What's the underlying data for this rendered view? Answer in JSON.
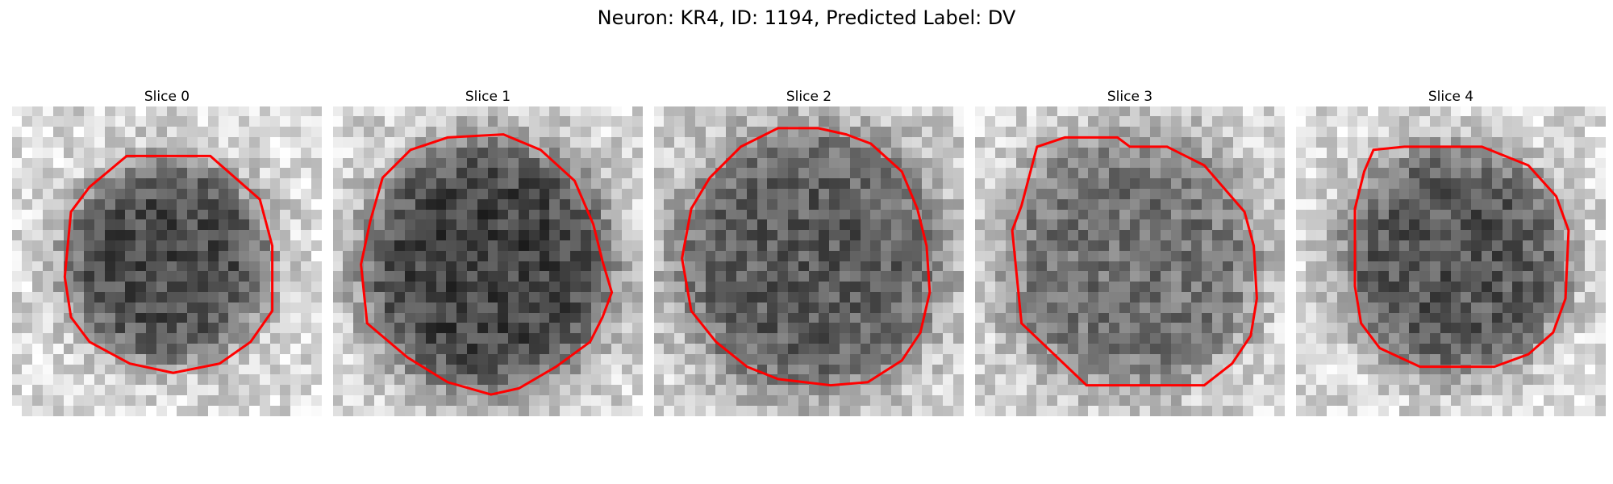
{
  "figure": {
    "title": "Neuron: KR4, ID: 1194, Predicted Label: DV"
  },
  "panels": [
    {
      "title": "Slice 0",
      "center": [
        0.5,
        0.5
      ],
      "radius": 0.33,
      "dark": 0.3,
      "bright": 0.86,
      "contour": [
        [
          0.37,
          0.16
        ],
        [
          0.64,
          0.16
        ],
        [
          0.8,
          0.3
        ],
        [
          0.84,
          0.45
        ],
        [
          0.84,
          0.66
        ],
        [
          0.77,
          0.76
        ],
        [
          0.67,
          0.83
        ],
        [
          0.52,
          0.86
        ],
        [
          0.38,
          0.83
        ],
        [
          0.25,
          0.76
        ],
        [
          0.19,
          0.68
        ],
        [
          0.17,
          0.55
        ],
        [
          0.19,
          0.34
        ],
        [
          0.25,
          0.26
        ]
      ]
    },
    {
      "title": "Slice 1",
      "center": [
        0.5,
        0.52
      ],
      "radius": 0.41,
      "dark": 0.26,
      "bright": 0.85,
      "contour": [
        [
          0.37,
          0.1
        ],
        [
          0.55,
          0.09
        ],
        [
          0.67,
          0.14
        ],
        [
          0.78,
          0.24
        ],
        [
          0.84,
          0.38
        ],
        [
          0.87,
          0.5
        ],
        [
          0.9,
          0.6
        ],
        [
          0.87,
          0.68
        ],
        [
          0.83,
          0.76
        ],
        [
          0.72,
          0.84
        ],
        [
          0.6,
          0.91
        ],
        [
          0.51,
          0.93
        ],
        [
          0.37,
          0.89
        ],
        [
          0.24,
          0.81
        ],
        [
          0.11,
          0.7
        ],
        [
          0.09,
          0.51
        ],
        [
          0.12,
          0.37
        ],
        [
          0.16,
          0.23
        ],
        [
          0.25,
          0.14
        ]
      ]
    },
    {
      "title": "Slice 2",
      "center": [
        0.5,
        0.5
      ],
      "radius": 0.43,
      "dark": 0.36,
      "bright": 0.82,
      "contour": [
        [
          0.4,
          0.07
        ],
        [
          0.53,
          0.07
        ],
        [
          0.62,
          0.09
        ],
        [
          0.7,
          0.12
        ],
        [
          0.8,
          0.21
        ],
        [
          0.85,
          0.33
        ],
        [
          0.88,
          0.45
        ],
        [
          0.89,
          0.6
        ],
        [
          0.86,
          0.73
        ],
        [
          0.8,
          0.82
        ],
        [
          0.69,
          0.89
        ],
        [
          0.57,
          0.9
        ],
        [
          0.4,
          0.88
        ],
        [
          0.3,
          0.84
        ],
        [
          0.2,
          0.76
        ],
        [
          0.12,
          0.66
        ],
        [
          0.09,
          0.49
        ],
        [
          0.12,
          0.33
        ],
        [
          0.18,
          0.23
        ],
        [
          0.28,
          0.13
        ]
      ]
    },
    {
      "title": "Slice 3",
      "center": [
        0.5,
        0.5
      ],
      "radius": 0.42,
      "dark": 0.45,
      "bright": 0.84,
      "contour": [
        [
          0.2,
          0.13
        ],
        [
          0.29,
          0.1
        ],
        [
          0.46,
          0.1
        ],
        [
          0.5,
          0.13
        ],
        [
          0.62,
          0.13
        ],
        [
          0.74,
          0.19
        ],
        [
          0.87,
          0.34
        ],
        [
          0.9,
          0.45
        ],
        [
          0.91,
          0.62
        ],
        [
          0.89,
          0.74
        ],
        [
          0.83,
          0.83
        ],
        [
          0.74,
          0.9
        ],
        [
          0.36,
          0.9
        ],
        [
          0.15,
          0.7
        ],
        [
          0.12,
          0.4
        ],
        [
          0.15,
          0.32
        ]
      ]
    },
    {
      "title": "Slice 4",
      "center": [
        0.51,
        0.5
      ],
      "radius": 0.37,
      "dark": 0.34,
      "bright": 0.86,
      "contour": [
        [
          0.25,
          0.14
        ],
        [
          0.35,
          0.13
        ],
        [
          0.6,
          0.13
        ],
        [
          0.75,
          0.19
        ],
        [
          0.84,
          0.29
        ],
        [
          0.88,
          0.4
        ],
        [
          0.87,
          0.62
        ],
        [
          0.83,
          0.73
        ],
        [
          0.75,
          0.8
        ],
        [
          0.64,
          0.84
        ],
        [
          0.4,
          0.84
        ],
        [
          0.27,
          0.78
        ],
        [
          0.21,
          0.7
        ],
        [
          0.19,
          0.58
        ],
        [
          0.19,
          0.33
        ],
        [
          0.22,
          0.21
        ]
      ]
    }
  ],
  "colors": {
    "contour": "#ff0000",
    "background": "#ffffff"
  },
  "image": {
    "grid": 30,
    "colormap": "gray"
  }
}
